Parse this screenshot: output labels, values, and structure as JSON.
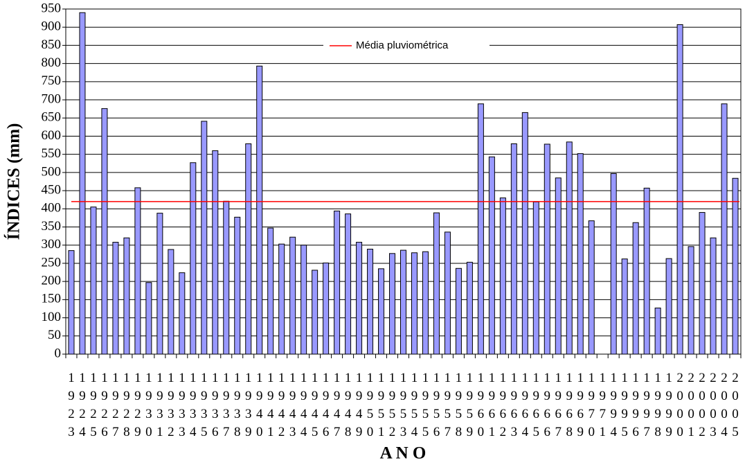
{
  "chart_data": {
    "type": "bar",
    "y_label": "ÍNDICES (mm)",
    "x_label": "A N O",
    "categories": [
      "1923",
      "1924",
      "1925",
      "1926",
      "1927",
      "1928",
      "1929",
      "1930",
      "1931",
      "1932",
      "1933",
      "1934",
      "1935",
      "1936",
      "1937",
      "1938",
      "1939",
      "1940",
      "1941",
      "1942",
      "1943",
      "1944",
      "1945",
      "1946",
      "1947",
      "1948",
      "1949",
      "1950",
      "1951",
      "1952",
      "1953",
      "1954",
      "1955",
      "1956",
      "1957",
      "1958",
      "1959",
      "1960",
      "1961",
      "1962",
      "1963",
      "1964",
      "1965",
      "1966",
      "1967",
      "1968",
      "1969",
      "1970",
      "1971",
      "1994",
      "1995",
      "1996",
      "1997",
      "1998",
      "1999",
      "2000",
      "2001",
      "2002",
      "2003",
      "2004",
      "2005"
    ],
    "values": [
      285,
      940,
      405,
      676,
      308,
      320,
      458,
      197,
      388,
      288,
      224,
      527,
      641,
      560,
      421,
      377,
      579,
      793,
      347,
      303,
      322,
      300,
      231,
      251,
      394,
      386,
      308,
      289,
      235,
      277,
      286,
      279,
      282,
      389,
      336,
      236,
      253,
      689,
      543,
      430,
      579,
      665,
      419,
      578,
      485,
      584,
      552,
      367,
      null,
      497,
      262,
      362,
      457,
      127,
      263,
      907,
      296,
      390,
      320,
      689,
      484
    ],
    "color": "#9999ff",
    "mean": {
      "name": "Média pluviométrica",
      "value": 420,
      "color": "#ff0000"
    },
    "ylim": [
      0,
      950
    ],
    "yticks": [
      0,
      50,
      100,
      150,
      200,
      250,
      300,
      350,
      400,
      450,
      500,
      550,
      600,
      650,
      700,
      750,
      800,
      850,
      900,
      950
    ],
    "grid": true
  }
}
